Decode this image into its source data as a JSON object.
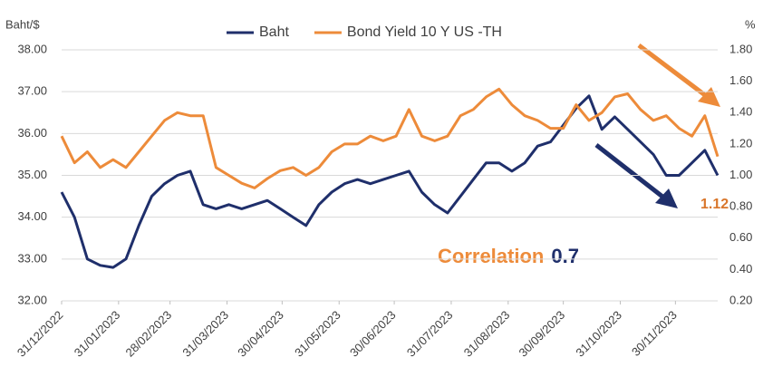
{
  "chart_data": {
    "type": "line",
    "y_label": "Baht/$",
    "y2_label": "%",
    "x": [
      "31/12/2022",
      "07/01/2023",
      "14/01/2023",
      "21/01/2023",
      "28/01/2023",
      "04/02/2023",
      "11/02/2023",
      "18/02/2023",
      "25/02/2023",
      "04/03/2023",
      "11/03/2023",
      "18/03/2023",
      "25/03/2023",
      "01/04/2023",
      "08/04/2023",
      "15/04/2023",
      "22/04/2023",
      "29/04/2023",
      "06/05/2023",
      "13/05/2023",
      "20/05/2023",
      "27/05/2023",
      "03/06/2023",
      "10/06/2023",
      "17/06/2023",
      "24/06/2023",
      "01/07/2023",
      "08/07/2023",
      "15/07/2023",
      "22/07/2023",
      "29/07/2023",
      "05/08/2023",
      "12/08/2023",
      "19/08/2023",
      "26/08/2023",
      "02/09/2023",
      "09/09/2023",
      "16/09/2023",
      "23/09/2023",
      "30/09/2023",
      "07/10/2023",
      "14/10/2023",
      "21/10/2023",
      "28/10/2023",
      "04/11/2023",
      "11/11/2023",
      "18/11/2023",
      "25/11/2023",
      "02/12/2023",
      "09/12/2023",
      "16/12/2023",
      "23/12/2023"
    ],
    "xlim": [
      "31/12/2022",
      "23/12/2023"
    ],
    "xticks": [
      "31/12/2022",
      "31/01/2023",
      "28/02/2023",
      "31/03/2023",
      "30/04/2023",
      "31/05/2023",
      "30/06/2023",
      "31/07/2023",
      "31/08/2023",
      "30/09/2023",
      "31/10/2023",
      "30/11/2023"
    ],
    "series": [
      {
        "name": "Baht",
        "color": "#1f2f6b",
        "values": [
          34.6,
          34.0,
          33.0,
          32.85,
          32.8,
          33.0,
          33.8,
          34.5,
          34.8,
          35.0,
          35.1,
          34.3,
          34.2,
          34.3,
          34.2,
          34.3,
          34.4,
          34.2,
          34.0,
          33.8,
          34.3,
          34.6,
          34.8,
          34.9,
          34.8,
          34.9,
          35.0,
          35.1,
          34.6,
          34.3,
          34.1,
          34.5,
          34.9,
          35.3,
          35.3,
          35.1,
          35.3,
          35.7,
          35.8,
          36.2,
          36.6,
          36.9,
          36.1,
          36.4,
          36.1,
          35.8,
          35.5,
          35.0,
          35.0,
          35.3,
          35.6,
          35.0
        ]
      },
      {
        "name": "Bond Yield 10 Y US -TH",
        "color": "#ed8b3a",
        "axis": "y2",
        "values": [
          1.25,
          1.08,
          1.15,
          1.05,
          1.1,
          1.05,
          1.15,
          1.25,
          1.35,
          1.4,
          1.38,
          1.38,
          1.05,
          1.0,
          0.95,
          0.92,
          0.98,
          1.03,
          1.05,
          1.0,
          1.05,
          1.15,
          1.2,
          1.2,
          1.25,
          1.22,
          1.25,
          1.42,
          1.25,
          1.22,
          1.25,
          1.38,
          1.42,
          1.5,
          1.55,
          1.45,
          1.38,
          1.35,
          1.3,
          1.3,
          1.45,
          1.35,
          1.4,
          1.5,
          1.52,
          1.42,
          1.35,
          1.38,
          1.3,
          1.25,
          1.38,
          1.12
        ]
      }
    ],
    "ylim": [
      32,
      38
    ],
    "yticks": [
      {
        "value": 32,
        "label": "32.00"
      },
      {
        "value": 33,
        "label": "33.00"
      },
      {
        "value": 34,
        "label": "34.00"
      },
      {
        "value": 35,
        "label": "35.00"
      },
      {
        "value": 36,
        "label": "36.00"
      },
      {
        "value": 37,
        "label": "37.00"
      },
      {
        "value": 38,
        "label": "38.00"
      }
    ],
    "y2lim": [
      0.2,
      1.8
    ],
    "y2ticks": [
      {
        "value": 0.2,
        "label": "0.20"
      },
      {
        "value": 0.4,
        "label": "0.40"
      },
      {
        "value": 0.6,
        "label": "0.60"
      },
      {
        "value": 0.8,
        "label": "0.80"
      },
      {
        "value": 1.0,
        "label": "1.00"
      },
      {
        "value": 1.2,
        "label": "1.20"
      },
      {
        "value": 1.4,
        "label": "1.40"
      },
      {
        "value": 1.6,
        "label": "1.60"
      },
      {
        "value": 1.8,
        "label": "1.80"
      }
    ],
    "grid": true,
    "legend": "top",
    "annotations": [
      "1.12",
      "Correlation",
      "0.7"
    ]
  }
}
